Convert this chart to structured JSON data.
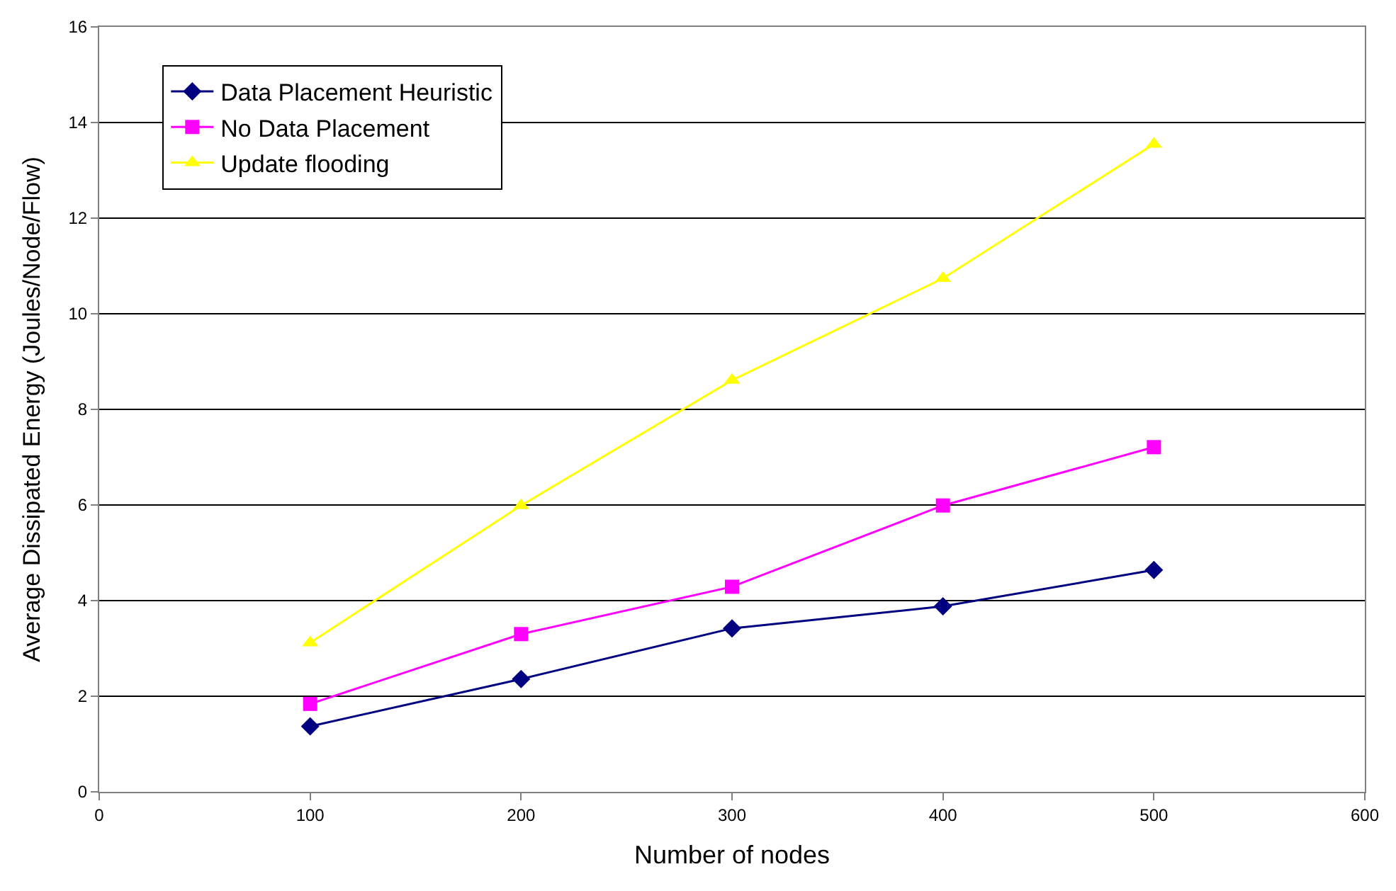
{
  "chart_data": {
    "type": "line",
    "xlabel": "Number of nodes",
    "ylabel": "Average Dissipated Energy (Joules/Node/Flow)",
    "x": [
      100,
      200,
      300,
      400,
      500
    ],
    "series": [
      {
        "name": "Data Placement Heuristic",
        "color": "#000080",
        "marker": "diamond",
        "values": [
          1.37,
          2.36,
          3.42,
          3.88,
          4.64
        ]
      },
      {
        "name": "No Data Placement",
        "color": "#ff00ff",
        "marker": "square",
        "values": [
          1.84,
          3.3,
          4.29,
          5.99,
          7.21
        ]
      },
      {
        "name": "Update flooding",
        "color": "#ffff00",
        "marker": "triangle",
        "values": [
          3.12,
          5.99,
          8.61,
          10.74,
          13.55
        ]
      }
    ],
    "xlim": [
      0,
      600
    ],
    "xticks": [
      0,
      100,
      200,
      300,
      400,
      500,
      600
    ],
    "ylim": [
      0,
      16
    ],
    "yticks": [
      0,
      2,
      4,
      6,
      8,
      10,
      12,
      14,
      16
    ],
    "grid": "y",
    "legend": "top left",
    "line_style": "solid"
  }
}
